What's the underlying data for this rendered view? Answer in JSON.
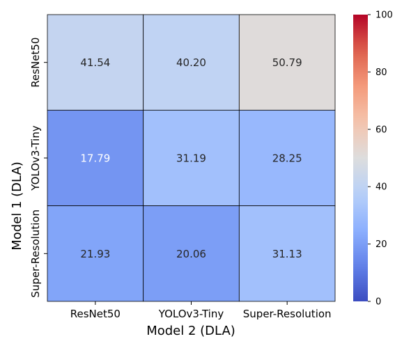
{
  "chart_data": {
    "type": "heatmap",
    "title": "",
    "xlabel": "Model 2 (DLA)",
    "ylabel": "Model 1 (DLA)",
    "x_categories": [
      "ResNet50",
      "YOLOv3-Tiny",
      "Super-Resolution"
    ],
    "y_categories": [
      "ResNet50",
      "YOLOv3-Tiny",
      "Super-Resolution"
    ],
    "values": [
      [
        41.54,
        40.2,
        50.79
      ],
      [
        17.79,
        31.19,
        28.25
      ],
      [
        21.93,
        20.06,
        31.13
      ]
    ],
    "value_labels": [
      [
        "41.54",
        "40.20",
        "50.79"
      ],
      [
        "17.79",
        "31.19",
        "28.25"
      ],
      [
        "21.93",
        "20.06",
        "31.13"
      ]
    ],
    "colormap": "coolwarm",
    "vmin": 0,
    "vmax": 100,
    "colorbar_ticks": [
      0,
      20,
      40,
      60,
      80,
      100
    ],
    "colorbar_tick_labels": [
      "0",
      "20",
      "40",
      "60",
      "80",
      "100"
    ],
    "cell_border_color": "#000000",
    "legend": "colorbar-right"
  }
}
